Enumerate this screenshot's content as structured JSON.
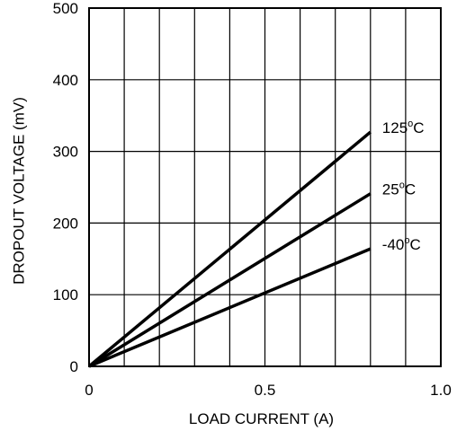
{
  "chart_data": {
    "type": "line",
    "title": "",
    "xlabel": "LOAD CURRENT (A)",
    "ylabel": "DROPOUT VOLTAGE (mV)",
    "xlim": [
      0,
      1.0
    ],
    "ylim": [
      0,
      500
    ],
    "x_ticks": [
      0,
      0.5,
      1.0
    ],
    "x_tick_labels": [
      "0",
      "0.5",
      "1.0"
    ],
    "y_ticks": [
      0,
      100,
      200,
      300,
      400,
      500
    ],
    "y_tick_labels": [
      "0",
      "100",
      "200",
      "300",
      "400",
      "500"
    ],
    "x_gridlines": [
      0,
      0.1,
      0.2,
      0.3,
      0.4,
      0.5,
      0.6,
      0.7,
      0.8,
      0.9,
      1.0
    ],
    "y_gridlines": [
      0,
      100,
      200,
      300,
      400,
      500
    ],
    "grid": true,
    "legend": "inline labels at line ends",
    "series": [
      {
        "name": "125°C",
        "label_main": "125",
        "label_sup": "o",
        "label_unit": "C",
        "x": [
          0,
          0.8
        ],
        "y": [
          0,
          327
        ],
        "color": "#000000"
      },
      {
        "name": "25°C",
        "label_main": "25",
        "label_sup": "o",
        "label_unit": "C",
        "x": [
          0,
          0.8
        ],
        "y": [
          0,
          241
        ],
        "color": "#000000"
      },
      {
        "name": "-40°C",
        "label_main": "-40",
        "label_sup": "o",
        "label_unit": "C",
        "x": [
          0,
          0.8
        ],
        "y": [
          0,
          164
        ],
        "color": "#000000"
      }
    ]
  }
}
